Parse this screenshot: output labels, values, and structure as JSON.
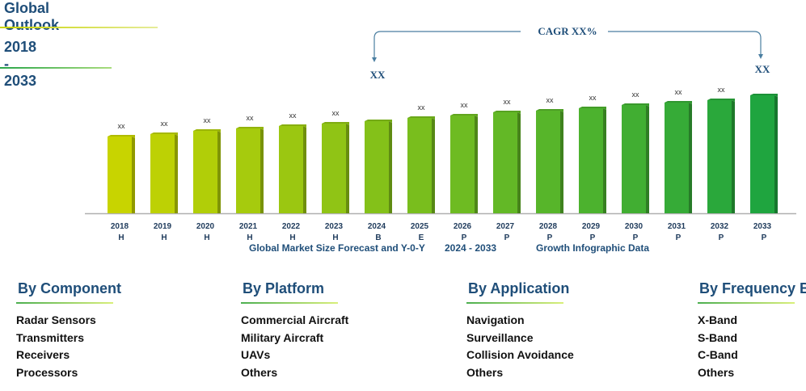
{
  "header": {
    "title": "Global Outlook",
    "years": "2018 - 2033"
  },
  "chart_data": {
    "type": "bar",
    "categories": [
      "2018",
      "2019",
      "2020",
      "2021",
      "2022",
      "2023",
      "2024",
      "2025",
      "2026",
      "2027",
      "2028",
      "2029",
      "2030",
      "2031",
      "2032",
      "2033"
    ],
    "period_codes": [
      "H",
      "H",
      "H",
      "H",
      "H",
      "H",
      "B",
      "E",
      "P",
      "P",
      "P",
      "P",
      "P",
      "P",
      "P",
      "P"
    ],
    "values": [
      95,
      98,
      102,
      105,
      108,
      111,
      114,
      118,
      121,
      125,
      127,
      130,
      134,
      137,
      140,
      146
    ],
    "data_labels": [
      "xx",
      "xx",
      "xx",
      "xx",
      "xx",
      "xx",
      "",
      "xx",
      "xx",
      "xx",
      "xx",
      "xx",
      "xx",
      "xx",
      "xx",
      ""
    ],
    "ylim": [
      0,
      150
    ],
    "grid": false,
    "cagr_label": "CAGR XX%",
    "start_label": "XX",
    "end_label": "XX",
    "subtitle_parts": [
      "Global Market Size Forecast and Y-0-Y",
      "2024 - 2033",
      "Growth Infographic Data"
    ]
  },
  "segments": [
    {
      "title": "By Component",
      "items": [
        "Radar Sensors",
        "Transmitters",
        "Receivers",
        "Processors"
      ]
    },
    {
      "title": "By Platform",
      "items": [
        "Commercial Aircraft",
        "Military Aircraft",
        "UAVs",
        "Others"
      ]
    },
    {
      "title": "By Application",
      "items": [
        "Navigation",
        "Surveillance",
        "Collision Avoidance",
        "Others"
      ]
    },
    {
      "title": "By Frequency Band",
      "items": [
        "X-Band",
        "S-Band",
        "C-Band",
        "Others"
      ]
    }
  ],
  "colors": {
    "title": "#1f4e79",
    "bar_start": "#c8d400",
    "bar_end": "#1fa53f",
    "axis": "#b0b0b0"
  }
}
